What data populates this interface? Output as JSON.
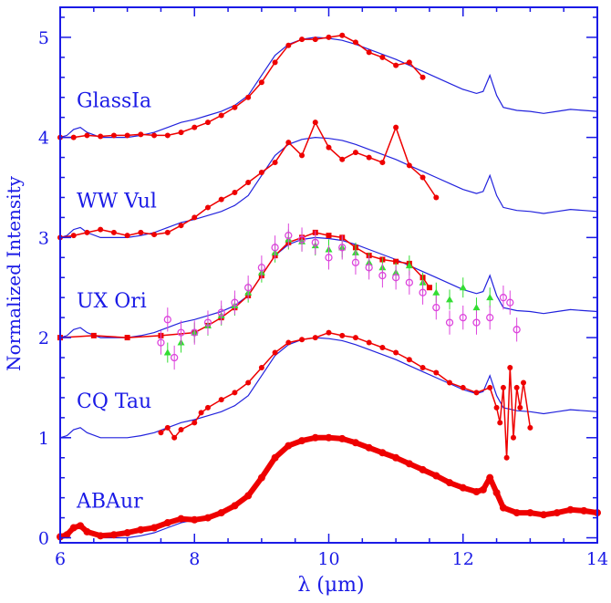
{
  "chart_data": {
    "type": "line",
    "xlabel": "λ  (μm)",
    "ylabel": "Normalized Intensity",
    "xlim": [
      6,
      14
    ],
    "ylim": [
      -0.05,
      5.3
    ],
    "x_ticks": [
      6,
      8,
      10,
      12,
      14
    ],
    "y_ticks": [
      0,
      1,
      2,
      3,
      4,
      5
    ],
    "grid": false,
    "colors": {
      "axis": "#1a1ae6",
      "reference_line": "#2222dd",
      "observed": "#ee0000",
      "series_green": "#33dd33",
      "series_magenta": "#dd44dd"
    },
    "series": [
      {
        "label": "ABAur",
        "offset": 0,
        "style": "thick-red-dots",
        "values": [
          [
            6.0,
            0.01
          ],
          [
            6.1,
            0.03
          ],
          [
            6.2,
            0.1
          ],
          [
            6.3,
            0.12
          ],
          [
            6.4,
            0.06
          ],
          [
            6.6,
            0.02
          ],
          [
            6.8,
            0.03
          ],
          [
            7.0,
            0.05
          ],
          [
            7.2,
            0.08
          ],
          [
            7.4,
            0.1
          ],
          [
            7.6,
            0.15
          ],
          [
            7.8,
            0.19
          ],
          [
            8.0,
            0.18
          ],
          [
            8.2,
            0.2
          ],
          [
            8.4,
            0.25
          ],
          [
            8.6,
            0.32
          ],
          [
            8.8,
            0.42
          ],
          [
            9.0,
            0.6
          ],
          [
            9.2,
            0.8
          ],
          [
            9.4,
            0.92
          ],
          [
            9.6,
            0.97
          ],
          [
            9.8,
            1.0
          ],
          [
            10.0,
            1.0
          ],
          [
            10.2,
            0.99
          ],
          [
            10.4,
            0.95
          ],
          [
            10.6,
            0.9
          ],
          [
            10.8,
            0.85
          ],
          [
            11.0,
            0.8
          ],
          [
            11.2,
            0.74
          ],
          [
            11.4,
            0.68
          ],
          [
            11.6,
            0.62
          ],
          [
            11.8,
            0.55
          ],
          [
            12.0,
            0.5
          ],
          [
            12.2,
            0.46
          ],
          [
            12.3,
            0.48
          ],
          [
            12.4,
            0.6
          ],
          [
            12.5,
            0.45
          ],
          [
            12.6,
            0.3
          ],
          [
            12.8,
            0.25
          ],
          [
            13.0,
            0.25
          ],
          [
            13.2,
            0.23
          ],
          [
            13.4,
            0.25
          ],
          [
            13.6,
            0.28
          ],
          [
            13.8,
            0.27
          ],
          [
            14.0,
            0.25
          ]
        ]
      },
      {
        "label": "CQ Tau",
        "offset": 1,
        "style": "red-line-dots",
        "values": [
          [
            7.5,
            1.05
          ],
          [
            7.6,
            1.1
          ],
          [
            7.7,
            1.0
          ],
          [
            7.8,
            1.08
          ],
          [
            8.0,
            1.15
          ],
          [
            8.1,
            1.25
          ],
          [
            8.2,
            1.3
          ],
          [
            8.4,
            1.38
          ],
          [
            8.6,
            1.45
          ],
          [
            8.8,
            1.55
          ],
          [
            9.0,
            1.7
          ],
          [
            9.2,
            1.85
          ],
          [
            9.4,
            1.95
          ],
          [
            9.6,
            1.98
          ],
          [
            9.8,
            2.0
          ],
          [
            10.0,
            2.05
          ],
          [
            10.2,
            2.02
          ],
          [
            10.4,
            2.0
          ],
          [
            10.6,
            1.95
          ],
          [
            10.8,
            1.9
          ],
          [
            11.0,
            1.85
          ],
          [
            11.2,
            1.78
          ],
          [
            11.4,
            1.7
          ],
          [
            11.6,
            1.65
          ],
          [
            11.8,
            1.55
          ],
          [
            12.0,
            1.5
          ],
          [
            12.2,
            1.45
          ],
          [
            12.4,
            1.5
          ],
          [
            12.5,
            1.3
          ],
          [
            12.55,
            1.15
          ],
          [
            12.6,
            1.5
          ],
          [
            12.65,
            0.8
          ],
          [
            12.7,
            1.7
          ],
          [
            12.75,
            1.0
          ],
          [
            12.8,
            1.5
          ],
          [
            12.85,
            1.3
          ],
          [
            12.9,
            1.55
          ],
          [
            13.0,
            1.1
          ]
        ]
      },
      {
        "label": "UX Ori",
        "offset": 2,
        "style": "red-squares-with-green-and-magenta",
        "values": [
          [
            6.0,
            2.0
          ],
          [
            6.5,
            2.02
          ],
          [
            7.0,
            2.0
          ],
          [
            7.5,
            2.02
          ],
          [
            8.0,
            2.05
          ],
          [
            8.2,
            2.12
          ],
          [
            8.4,
            2.2
          ],
          [
            8.6,
            2.3
          ],
          [
            8.8,
            2.42
          ],
          [
            9.0,
            2.62
          ],
          [
            9.2,
            2.82
          ],
          [
            9.4,
            2.95
          ],
          [
            9.6,
            3.0
          ],
          [
            9.8,
            3.05
          ],
          [
            10.0,
            3.02
          ],
          [
            10.2,
            3.0
          ],
          [
            10.4,
            2.9
          ],
          [
            10.6,
            2.82
          ],
          [
            10.8,
            2.78
          ],
          [
            11.0,
            2.76
          ],
          [
            11.2,
            2.74
          ],
          [
            11.4,
            2.6
          ],
          [
            11.5,
            2.5
          ]
        ]
      },
      {
        "label": "WW Vul",
        "offset": 3,
        "style": "red-line-dots",
        "values": [
          [
            6.0,
            3.0
          ],
          [
            6.2,
            3.02
          ],
          [
            6.4,
            3.05
          ],
          [
            6.6,
            3.08
          ],
          [
            6.8,
            3.05
          ],
          [
            7.0,
            3.02
          ],
          [
            7.2,
            3.05
          ],
          [
            7.4,
            3.03
          ],
          [
            7.6,
            3.05
          ],
          [
            7.8,
            3.12
          ],
          [
            8.0,
            3.2
          ],
          [
            8.2,
            3.3
          ],
          [
            8.4,
            3.38
          ],
          [
            8.6,
            3.45
          ],
          [
            8.8,
            3.55
          ],
          [
            9.0,
            3.65
          ],
          [
            9.2,
            3.75
          ],
          [
            9.4,
            3.95
          ],
          [
            9.6,
            3.82
          ],
          [
            9.8,
            4.15
          ],
          [
            10.0,
            3.9
          ],
          [
            10.2,
            3.78
          ],
          [
            10.4,
            3.85
          ],
          [
            10.6,
            3.8
          ],
          [
            10.8,
            3.75
          ],
          [
            11.0,
            4.1
          ],
          [
            11.2,
            3.72
          ],
          [
            11.4,
            3.6
          ],
          [
            11.6,
            3.4
          ]
        ]
      },
      {
        "label": "GlassIa",
        "offset": 4,
        "style": "red-line-dots",
        "values": [
          [
            6.0,
            4.0
          ],
          [
            6.2,
            4.0
          ],
          [
            6.4,
            4.02
          ],
          [
            6.6,
            4.01
          ],
          [
            6.8,
            4.02
          ],
          [
            7.0,
            4.02
          ],
          [
            7.2,
            4.03
          ],
          [
            7.4,
            4.02
          ],
          [
            7.6,
            4.02
          ],
          [
            7.8,
            4.05
          ],
          [
            8.0,
            4.1
          ],
          [
            8.2,
            4.15
          ],
          [
            8.4,
            4.22
          ],
          [
            8.6,
            4.3
          ],
          [
            8.8,
            4.4
          ],
          [
            9.0,
            4.55
          ],
          [
            9.2,
            4.75
          ],
          [
            9.4,
            4.92
          ],
          [
            9.6,
            4.98
          ],
          [
            9.8,
            4.98
          ],
          [
            10.0,
            5.0
          ],
          [
            10.2,
            5.02
          ],
          [
            10.4,
            4.95
          ],
          [
            10.6,
            4.85
          ],
          [
            10.8,
            4.8
          ],
          [
            11.0,
            4.72
          ],
          [
            11.2,
            4.75
          ],
          [
            11.4,
            4.6
          ]
        ]
      }
    ],
    "reference_spectrum": {
      "note_free": true,
      "values": [
        [
          6.0,
          0.0
        ],
        [
          6.1,
          0.02
        ],
        [
          6.2,
          0.08
        ],
        [
          6.3,
          0.1
        ],
        [
          6.4,
          0.05
        ],
        [
          6.6,
          0.0
        ],
        [
          6.8,
          0.0
        ],
        [
          7.0,
          0.0
        ],
        [
          7.2,
          0.02
        ],
        [
          7.4,
          0.05
        ],
        [
          7.6,
          0.1
        ],
        [
          7.8,
          0.15
        ],
        [
          8.0,
          0.18
        ],
        [
          8.2,
          0.22
        ],
        [
          8.4,
          0.26
        ],
        [
          8.6,
          0.32
        ],
        [
          8.8,
          0.42
        ],
        [
          9.0,
          0.62
        ],
        [
          9.2,
          0.82
        ],
        [
          9.4,
          0.93
        ],
        [
          9.6,
          0.98
        ],
        [
          9.8,
          1.0
        ],
        [
          10.0,
          0.99
        ],
        [
          10.2,
          0.97
        ],
        [
          10.4,
          0.93
        ],
        [
          10.6,
          0.88
        ],
        [
          10.8,
          0.83
        ],
        [
          11.0,
          0.78
        ],
        [
          11.2,
          0.72
        ],
        [
          11.4,
          0.66
        ],
        [
          11.6,
          0.6
        ],
        [
          11.8,
          0.54
        ],
        [
          12.0,
          0.48
        ],
        [
          12.2,
          0.44
        ],
        [
          12.3,
          0.46
        ],
        [
          12.4,
          0.62
        ],
        [
          12.5,
          0.42
        ],
        [
          12.6,
          0.3
        ],
        [
          12.8,
          0.27
        ],
        [
          13.0,
          0.26
        ],
        [
          13.2,
          0.24
        ],
        [
          13.4,
          0.26
        ],
        [
          13.6,
          0.28
        ],
        [
          13.8,
          0.27
        ],
        [
          14.0,
          0.26
        ]
      ]
    },
    "ux_ori_extra": {
      "green": [
        [
          7.6,
          1.85
        ],
        [
          7.8,
          1.95
        ],
        [
          8.0,
          2.05
        ],
        [
          8.2,
          2.12
        ],
        [
          8.4,
          2.22
        ],
        [
          8.6,
          2.32
        ],
        [
          8.8,
          2.45
        ],
        [
          9.0,
          2.65
        ],
        [
          9.2,
          2.85
        ],
        [
          9.4,
          2.98
        ],
        [
          9.6,
          2.96
        ],
        [
          9.8,
          2.92
        ],
        [
          10.0,
          2.88
        ],
        [
          10.2,
          2.9
        ],
        [
          10.4,
          2.85
        ],
        [
          10.6,
          2.75
        ],
        [
          10.8,
          2.7
        ],
        [
          11.0,
          2.65
        ],
        [
          11.2,
          2.72
        ],
        [
          11.4,
          2.55
        ],
        [
          11.6,
          2.45
        ],
        [
          11.8,
          2.38
        ],
        [
          12.0,
          2.5
        ],
        [
          12.2,
          2.3
        ],
        [
          12.4,
          2.4
        ]
      ],
      "magenta": [
        [
          7.5,
          1.95
        ],
        [
          7.6,
          2.18
        ],
        [
          7.7,
          1.8
        ],
        [
          7.8,
          2.05
        ],
        [
          8.0,
          2.05
        ],
        [
          8.2,
          2.15
        ],
        [
          8.4,
          2.25
        ],
        [
          8.6,
          2.35
        ],
        [
          8.8,
          2.5
        ],
        [
          9.0,
          2.7
        ],
        [
          9.2,
          2.9
        ],
        [
          9.4,
          3.02
        ],
        [
          9.6,
          2.98
        ],
        [
          9.8,
          2.95
        ],
        [
          10.0,
          2.8
        ],
        [
          10.2,
          2.9
        ],
        [
          10.4,
          2.75
        ],
        [
          10.6,
          2.7
        ],
        [
          10.8,
          2.62
        ],
        [
          11.0,
          2.6
        ],
        [
          11.2,
          2.55
        ],
        [
          11.4,
          2.45
        ],
        [
          11.6,
          2.3
        ],
        [
          11.8,
          2.15
        ],
        [
          12.0,
          2.2
        ],
        [
          12.2,
          2.15
        ],
        [
          12.4,
          2.2
        ],
        [
          12.6,
          2.4
        ],
        [
          12.7,
          2.35
        ],
        [
          12.8,
          2.08
        ]
      ]
    }
  }
}
